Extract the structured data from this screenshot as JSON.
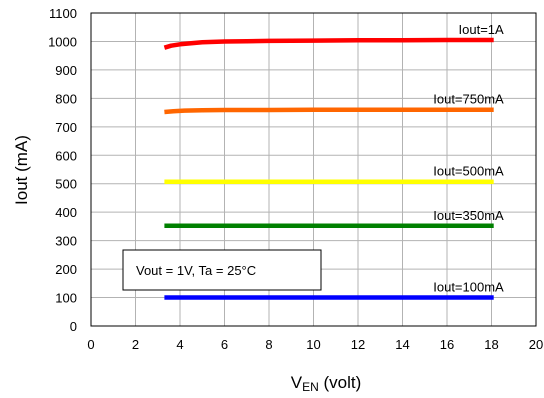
{
  "chart_data": {
    "type": "line",
    "xlabel": "VEN (volt)",
    "xlabel_main": "V",
    "xlabel_sub": "EN",
    "xlabel_unit": " (volt)",
    "ylabel": "Iout (mA)",
    "xlim": [
      0,
      20
    ],
    "ylim": [
      0,
      1100
    ],
    "xticks": [
      0,
      2,
      4,
      6,
      8,
      10,
      12,
      14,
      16,
      18,
      20
    ],
    "yticks": [
      0,
      100,
      200,
      300,
      400,
      500,
      600,
      700,
      800,
      900,
      1000,
      1100
    ],
    "grid": true,
    "annotation": "Vout = 1V, Ta = 25°C",
    "series": [
      {
        "name": "Iout=1A",
        "color": "#ff0000",
        "x": [
          3.3,
          3.6,
          4.0,
          4.5,
          5.0,
          6.0,
          7.0,
          8.0,
          10.0,
          12.0,
          14.0,
          16.0,
          18.1
        ],
        "y": [
          978,
          985,
          990,
          994,
          997,
          1000,
          1001,
          1002,
          1003,
          1004,
          1004,
          1005,
          1005
        ]
      },
      {
        "name": "Iout=750mA",
        "color": "#ff6600",
        "x": [
          3.3,
          3.7,
          4.2,
          5.0,
          6.0,
          8.0,
          10.0,
          12.0,
          14.0,
          16.0,
          18.1
        ],
        "y": [
          752,
          755,
          757,
          758,
          759,
          759,
          760,
          760,
          760,
          760,
          760
        ]
      },
      {
        "name": "Iout=500mA",
        "color": "#ffff00",
        "x": [
          3.3,
          18.1
        ],
        "y": [
          507,
          507
        ]
      },
      {
        "name": "Iout=350mA",
        "color": "#008000",
        "x": [
          3.3,
          18.1
        ],
        "y": [
          352,
          352
        ]
      },
      {
        "name": "Iout=100mA",
        "color": "#0000ff",
        "x": [
          3.3,
          18.1
        ],
        "y": [
          100,
          100
        ]
      }
    ]
  }
}
